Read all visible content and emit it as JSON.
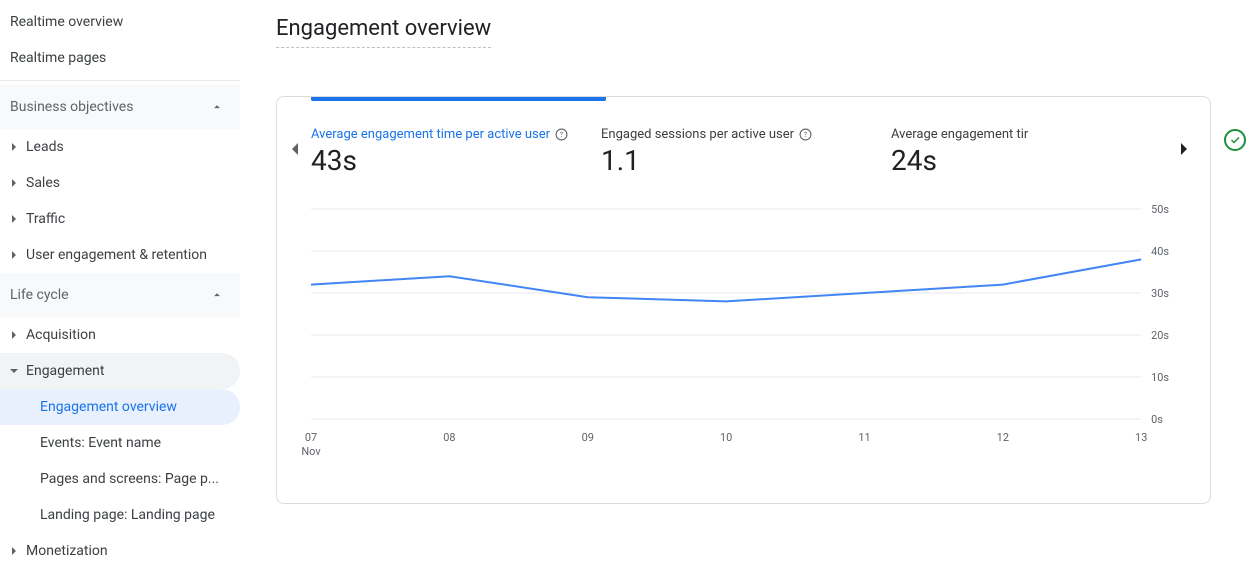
{
  "sidebar": {
    "realtime_overview": "Realtime overview",
    "realtime_pages": "Realtime pages",
    "business_section": "Business objectives",
    "leads": "Leads",
    "sales": "Sales",
    "traffic": "Traffic",
    "user_engagement": "User engagement & retention",
    "lifecycle_section": "Life cycle",
    "acquisition": "Acquisition",
    "engagement": "Engagement",
    "engagement_overview": "Engagement overview",
    "events": "Events: Event name",
    "pages_screens": "Pages and screens: Page p...",
    "landing_page": "Landing page: Landing page",
    "monetization": "Monetization"
  },
  "page": {
    "title": "Engagement overview"
  },
  "metrics": [
    {
      "label": "Average engagement time per active user",
      "value": "43s",
      "help": true,
      "active": true
    },
    {
      "label": "Engaged sessions per active user",
      "value": "1.1",
      "help": true,
      "active": false
    },
    {
      "label": "Average engagement tir",
      "value": "24s",
      "help": false,
      "active": false
    }
  ],
  "chart": {
    "type": "line",
    "series_color": "#4285f4",
    "background_color": "#ffffff",
    "grid_color": "#e8eaed",
    "y_axis": {
      "min": 0,
      "max": 50,
      "ticks": [
        0,
        10,
        20,
        30,
        40,
        50
      ],
      "tick_labels": [
        "0s",
        "10s",
        "20s",
        "30s",
        "40s",
        "50s"
      ],
      "label_fontsize": 11,
      "label_color": "#5f6368"
    },
    "x_axis": {
      "labels": [
        "07",
        "08",
        "09",
        "10",
        "11",
        "12",
        "13"
      ],
      "sublabel": "Nov",
      "label_fontsize": 11,
      "label_color": "#5f6368"
    },
    "data": [
      {
        "x": "07",
        "y": 32
      },
      {
        "x": "08",
        "y": 34
      },
      {
        "x": "09",
        "y": 29
      },
      {
        "x": "10",
        "y": 28
      },
      {
        "x": "11",
        "y": 30
      },
      {
        "x": "12",
        "y": 32
      },
      {
        "x": "13",
        "y": 38
      }
    ],
    "line_width": 2
  },
  "colors": {
    "accent": "#1a73e8",
    "success": "#1e8e3e",
    "text_primary": "#202124",
    "text_secondary": "#5f6368",
    "border": "#dadce0"
  }
}
